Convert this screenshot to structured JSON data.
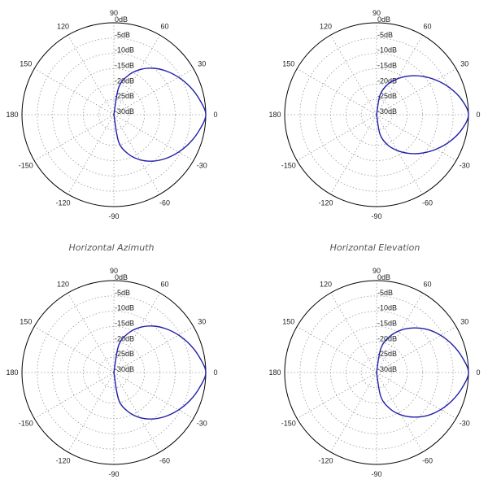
{
  "chart_data": [
    {
      "type": "polar",
      "title": "",
      "angle_unit": "degrees",
      "angle_ticks": [
        "0",
        "30",
        "60",
        "90",
        "120",
        "150",
        "180",
        "-150",
        "-120",
        "-90",
        "-60",
        "-30"
      ],
      "r_ticks": [
        "0dB",
        "-5dB",
        "-10dB",
        "-15dB",
        "-20dB",
        "-25dB",
        "-30dB"
      ],
      "r_range_db": [
        -30,
        0
      ],
      "grid": true,
      "series": [
        {
          "color": "#1f1fa8",
          "theta": [
            -90,
            -80,
            -70,
            -60,
            -50,
            -40,
            -30,
            -20,
            -10,
            0,
            10,
            20,
            30,
            40,
            50,
            60,
            70,
            80,
            90
          ],
          "r_db": [
            -30,
            -21.0,
            -16.4,
            -13.0,
            -10.2,
            -7.8,
            -5.6,
            -3.5,
            -1.6,
            0,
            -1.6,
            -3.5,
            -5.6,
            -7.8,
            -10.2,
            -13.0,
            -16.4,
            -21.0,
            -30
          ]
        }
      ]
    },
    {
      "type": "polar",
      "title": "",
      "angle_unit": "degrees",
      "angle_ticks": [
        "0",
        "30",
        "60",
        "90",
        "120",
        "150",
        "180",
        "-150",
        "-120",
        "-90",
        "-60",
        "-30"
      ],
      "r_ticks": [
        "0dB",
        "-5dB",
        "-10dB",
        "-15dB",
        "-20dB",
        "-25dB",
        "-30dB"
      ],
      "r_range_db": [
        -30,
        0
      ],
      "grid": true,
      "series": [
        {
          "color": "#1f1fa8",
          "theta": [
            -90,
            -80,
            -70,
            -60,
            -50,
            -40,
            -30,
            -20,
            -10,
            0,
            10,
            20,
            30,
            40,
            50,
            60,
            70,
            80,
            90
          ],
          "r_db": [
            -30,
            -23.5,
            -19.5,
            -16.5,
            -13.5,
            -10.5,
            -7.5,
            -4.5,
            -1.8,
            0,
            -1.8,
            -4.5,
            -7.5,
            -10.5,
            -13.5,
            -16.5,
            -19.5,
            -23.5,
            -30
          ]
        }
      ]
    },
    {
      "type": "polar",
      "title": "Horizontal Azimuth",
      "angle_unit": "degrees",
      "angle_ticks": [
        "0",
        "30",
        "60",
        "90",
        "120",
        "150",
        "180",
        "-150",
        "-120",
        "-90",
        "-60",
        "-30"
      ],
      "r_ticks": [
        "0dB",
        "-5dB",
        "-10dB",
        "-15dB",
        "-20dB",
        "-25dB",
        "-30dB"
      ],
      "r_range_db": [
        -30,
        0
      ],
      "grid": true,
      "series": [
        {
          "color": "#1f1fa8",
          "theta": [
            -90,
            -80,
            -70,
            -60,
            -50,
            -40,
            -30,
            -20,
            -10,
            0,
            10,
            20,
            30,
            40,
            50,
            60,
            70,
            80,
            90
          ],
          "r_db": [
            -30,
            -21.0,
            -16.4,
            -13.0,
            -10.2,
            -7.8,
            -5.6,
            -3.5,
            -1.6,
            0,
            -1.6,
            -3.5,
            -5.6,
            -7.8,
            -10.2,
            -13.0,
            -16.4,
            -21.0,
            -30
          ]
        }
      ]
    },
    {
      "type": "polar",
      "title": "Horizontal Elevation",
      "angle_unit": "degrees",
      "angle_ticks": [
        "0",
        "30",
        "60",
        "90",
        "120",
        "150",
        "180",
        "-150",
        "-120",
        "-90",
        "-60",
        "-30"
      ],
      "r_ticks": [
        "0dB",
        "-5dB",
        "-10dB",
        "-15dB",
        "-20dB",
        "-25dB",
        "-30dB"
      ],
      "r_range_db": [
        -30,
        0
      ],
      "grid": true,
      "series": [
        {
          "color": "#1f1fa8",
          "theta": [
            -90,
            -80,
            -70,
            -60,
            -50,
            -40,
            -30,
            -20,
            -10,
            0,
            10,
            20,
            30,
            40,
            50,
            60,
            70,
            80,
            90
          ],
          "r_db": [
            -30,
            -22.0,
            -17.5,
            -14.0,
            -11.0,
            -8.2,
            -5.8,
            -3.6,
            -1.6,
            0,
            -1.6,
            -3.6,
            -5.8,
            -8.2,
            -11.0,
            -14.0,
            -17.5,
            -22.0,
            -30
          ]
        }
      ]
    }
  ]
}
